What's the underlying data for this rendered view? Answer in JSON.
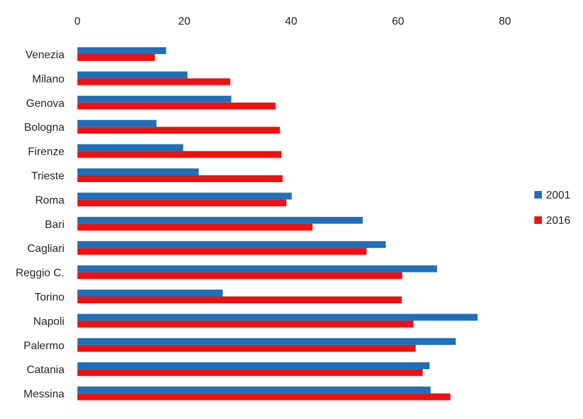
{
  "chart_data": {
    "type": "bar",
    "orientation": "horizontal",
    "axis_position": "top",
    "grid": false,
    "legend_position": "right",
    "xlim": [
      0,
      80
    ],
    "x_ticks": [
      "0",
      "20",
      "40",
      "60",
      "80"
    ],
    "categories": [
      "Venezia",
      "Milano",
      "Genova",
      "Bologna",
      "Firenze",
      "Trieste",
      "Roma",
      "Bari",
      "Cagliari",
      "Reggio C.",
      "Torino",
      "Napoli",
      "Palermo",
      "Catania",
      "Messina"
    ],
    "series": [
      {
        "name": "2001",
        "color": "#1f6fba",
        "values": [
          16.6,
          20.6,
          28.8,
          14.8,
          19.8,
          22.7,
          40.1,
          53.4,
          57.7,
          67.3,
          27.2,
          74.9,
          70.8,
          65.9,
          66.1
        ]
      },
      {
        "name": "2016",
        "color": "#ee1111",
        "values": [
          14.5,
          28.6,
          37.1,
          37.9,
          38.2,
          38.4,
          39.1,
          44.0,
          54.1,
          60.8,
          60.7,
          62.9,
          63.3,
          64.6,
          69.8
        ]
      }
    ],
    "title": "",
    "xlabel": "",
    "ylabel": ""
  }
}
